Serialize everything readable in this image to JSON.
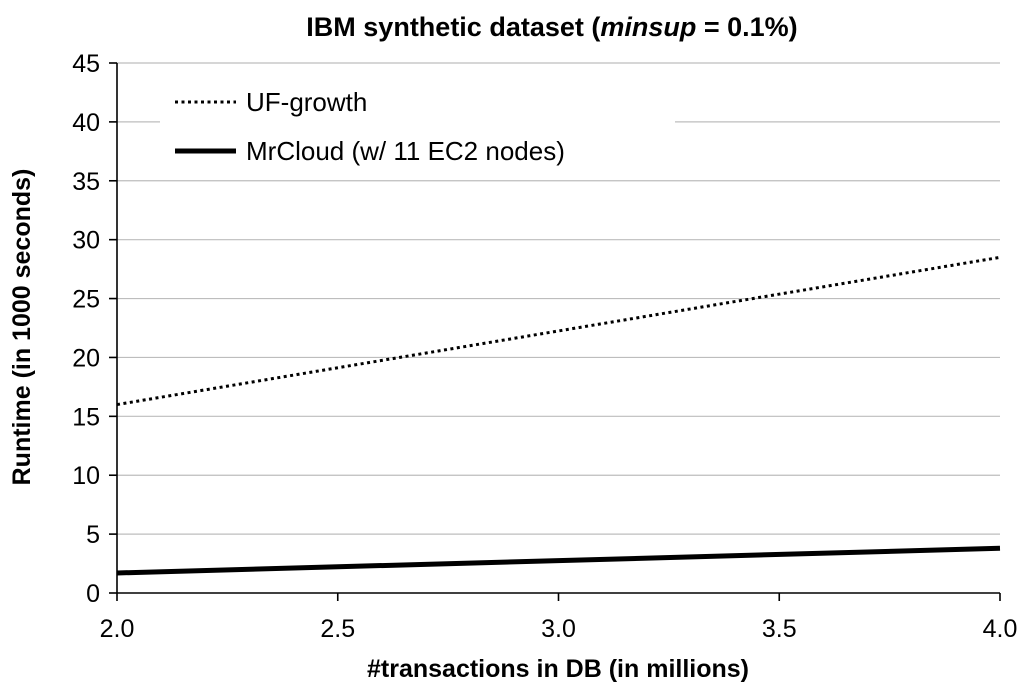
{
  "chart_data": {
    "type": "line",
    "title": {
      "prefix": "IBM synthetic dataset (",
      "italic": "minsup",
      "suffix": " = 0.1%)"
    },
    "xlabel": "#transactions in DB (in millions)",
    "ylabel": "Runtime (in 1000 seconds)",
    "xlim": [
      2.0,
      4.0
    ],
    "ylim": [
      0,
      45
    ],
    "x_ticks": [
      "2.0",
      "2.5",
      "3.0",
      "3.5",
      "4.0"
    ],
    "y_ticks": [
      "0",
      "5",
      "10",
      "15",
      "20",
      "25",
      "30",
      "35",
      "40",
      "45"
    ],
    "grid": "horizontal",
    "legend_position": "top-left",
    "series": [
      {
        "name": "UF-growth",
        "style": "dotted",
        "color": "#000000",
        "x": [
          2.0,
          4.0
        ],
        "y": [
          16.0,
          28.5
        ]
      },
      {
        "name": "MrCloud (w/ 11 EC2 nodes)",
        "style": "solid-thick",
        "color": "#000000",
        "x": [
          2.0,
          4.0
        ],
        "y": [
          1.7,
          3.8
        ]
      }
    ]
  }
}
